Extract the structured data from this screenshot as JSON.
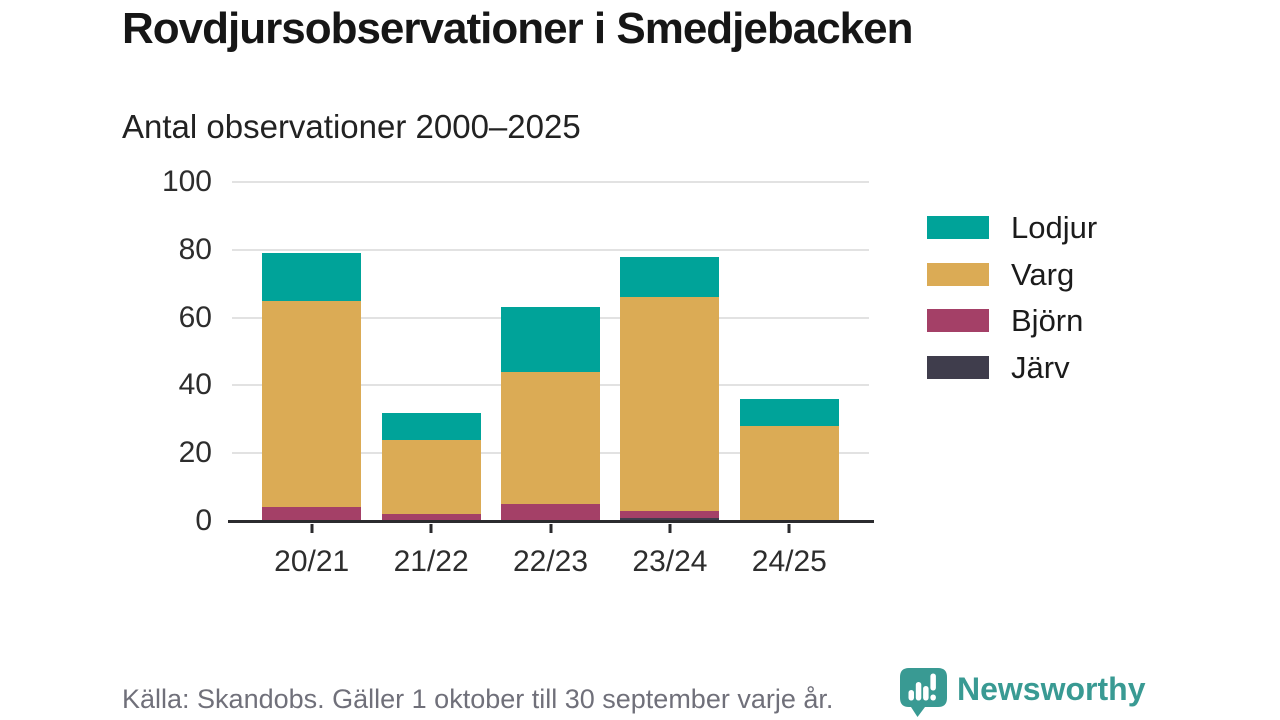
{
  "header": {
    "title": "Rovdjursobservationer i Smedjebacken",
    "subtitle": "Antal observationer 2000–2025"
  },
  "chart_data": {
    "type": "bar",
    "stacked": true,
    "title": "Rovdjursobservationer i Smedjebacken",
    "subtitle": "Antal observationer 2000–2025",
    "categories": [
      "20/21",
      "21/22",
      "22/23",
      "23/24",
      "24/25"
    ],
    "series": [
      {
        "name": "Järv",
        "color": "#3f3d4c",
        "values": [
          0,
          0,
          0,
          1,
          0
        ]
      },
      {
        "name": "Björn",
        "color": "#a44067",
        "values": [
          4,
          2,
          5,
          2,
          0
        ]
      },
      {
        "name": "Varg",
        "color": "#dbab55",
        "values": [
          61,
          22,
          39,
          63,
          28
        ]
      },
      {
        "name": "Lodjur",
        "color": "#00a399",
        "values": [
          14,
          8,
          19,
          12,
          8
        ]
      }
    ],
    "totals": [
      79,
      32,
      63,
      78,
      36
    ],
    "ylim": [
      0,
      100
    ],
    "yticks": [
      0,
      20,
      40,
      60,
      80,
      100
    ],
    "xlabel": "",
    "ylabel": "",
    "grid": true,
    "legend_position": "right",
    "legend_order": [
      "Lodjur",
      "Varg",
      "Björn",
      "Järv"
    ]
  },
  "footer": {
    "source": "Källa: Skandobs. Gäller 1 oktober till 30 september varje år.",
    "brand": "Newsworthy"
  },
  "colors": {
    "lodjur": "#00a399",
    "varg": "#dbab55",
    "bjorn": "#a44067",
    "jarv": "#3f3d4c",
    "brand_teal": "#399a93",
    "gridline": "#e2e2e2",
    "axis": "#2b2b2e"
  }
}
